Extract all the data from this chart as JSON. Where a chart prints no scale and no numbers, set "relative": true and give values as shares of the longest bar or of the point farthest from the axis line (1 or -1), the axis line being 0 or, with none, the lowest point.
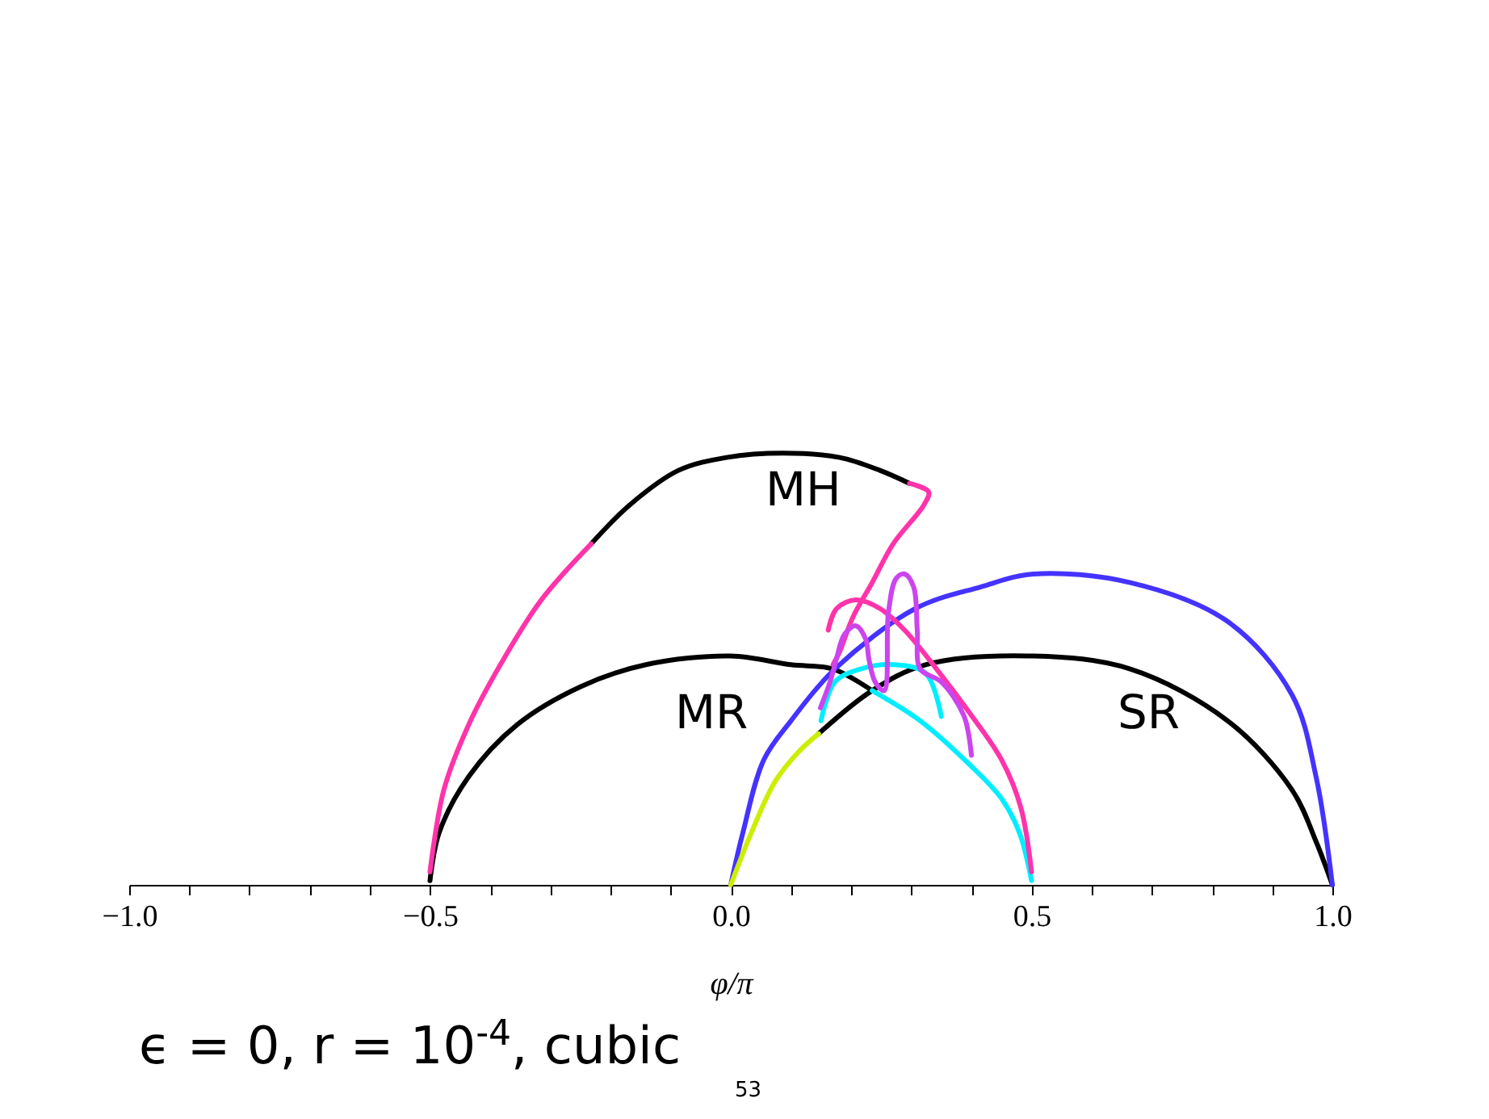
{
  "chart_data": {
    "type": "line",
    "relative": true,
    "xlabel": "φ/π",
    "xlim": [
      -1,
      1
    ],
    "xticks": [
      {
        "value": -1,
        "label": "−1.0"
      },
      {
        "value": -0.9,
        "label": null
      },
      {
        "value": -0.8,
        "label": null
      },
      {
        "value": -0.7,
        "label": null
      },
      {
        "value": -0.6,
        "label": null
      },
      {
        "value": -0.5,
        "label": "−0.5"
      },
      {
        "value": -0.4,
        "label": null
      },
      {
        "value": -0.3,
        "label": null
      },
      {
        "value": -0.2,
        "label": null
      },
      {
        "value": -0.1,
        "label": null
      },
      {
        "value": 0,
        "label": "0.0"
      },
      {
        "value": 0.1,
        "label": null
      },
      {
        "value": 0.2,
        "label": null
      },
      {
        "value": 0.3,
        "label": null
      },
      {
        "value": 0.4,
        "label": null
      },
      {
        "value": 0.5,
        "label": "0.5"
      },
      {
        "value": 0.6,
        "label": null
      },
      {
        "value": 0.7,
        "label": null
      },
      {
        "value": 0.8,
        "label": null
      },
      {
        "value": 0.9,
        "label": null
      },
      {
        "value": 1,
        "label": "1.0"
      }
    ],
    "grid": false,
    "legend": false,
    "marker": "none",
    "line_style": "solid",
    "series": [
      {
        "color": "#000000",
        "x": [
          -0.5,
          -0.485,
          -0.436,
          -0.356,
          -0.248,
          -0.141,
          0.0,
          0.1,
          0.17,
          0.235
        ],
        "values": [
          0.01,
          0.12,
          0.25,
          0.37,
          0.46,
          0.51,
          0.53,
          0.51,
          0.5,
          0.45
        ]
      },
      {
        "color": "#000000",
        "x": [
          0.146,
          0.235,
          0.324,
          0.503,
          0.664,
          0.826,
          0.933,
          0.973,
          1.0
        ],
        "values": [
          0.35,
          0.45,
          0.51,
          0.53,
          0.5,
          0.38,
          0.22,
          0.1,
          0.0
        ]
      },
      {
        "color": "#000000",
        "x": [
          -0.232,
          -0.168,
          -0.087,
          -0.007,
          0.087,
          0.181,
          0.248,
          0.297
        ],
        "values": [
          0.79,
          0.88,
          0.96,
          0.99,
          1.0,
          0.99,
          0.96,
          0.93
        ]
      },
      {
        "color": "#4433ff",
        "x": [
          0,
          0.02,
          0.055,
          0.1,
          0.173,
          0.307,
          0.415,
          0.503,
          0.664,
          0.826,
          0.933,
          0.973,
          1.0
        ],
        "values": [
          0,
          0.12,
          0.29,
          0.38,
          0.5,
          0.64,
          0.69,
          0.72,
          0.7,
          0.61,
          0.44,
          0.25,
          0
        ]
      },
      {
        "color": "#ccee00",
        "x": [
          0,
          0.034,
          0.074,
          0.114,
          0.146
        ],
        "values": [
          0,
          0.12,
          0.24,
          0.31,
          0.35
        ]
      },
      {
        "color": "#00eeff",
        "x": [
          0.15,
          0.173,
          0.216,
          0.27,
          0.324,
          0.35
        ],
        "values": [
          0.38,
          0.47,
          0.5,
          0.51,
          0.49,
          0.39
        ]
      },
      {
        "color": "#00eeff",
        "x": [
          0.235,
          0.315,
          0.396,
          0.45,
          0.48,
          0.5
        ],
        "values": [
          0.45,
          0.38,
          0.28,
          0.2,
          0.12,
          0.01
        ]
      },
      {
        "color": "#ff33aa",
        "x": [
          -0.5,
          -0.477,
          -0.436,
          -0.383,
          -0.315,
          -0.232
        ],
        "values": [
          0.03,
          0.22,
          0.37,
          0.51,
          0.66,
          0.79
        ]
      },
      {
        "color": "#ff33aa",
        "x": [
          0.297,
          0.329,
          0.321,
          0.27,
          0.235,
          0.203,
          0.181,
          0.17
        ],
        "values": [
          0.93,
          0.91,
          0.88,
          0.79,
          0.7,
          0.62,
          0.54,
          0.51
        ]
      },
      {
        "color": "#ff33aa",
        "x": [
          0.162,
          0.176,
          0.208,
          0.248,
          0.289,
          0.342,
          0.396,
          0.45,
          0.482,
          0.5
        ],
        "values": [
          0.59,
          0.64,
          0.66,
          0.64,
          0.59,
          0.5,
          0.4,
          0.29,
          0.18,
          0.03
        ]
      },
      {
        "color": "#cc44ee",
        "x": [
          0.149,
          0.165,
          0.175,
          0.189,
          0.208,
          0.224,
          0.23,
          0.24,
          0.255,
          0.262,
          0.275,
          0.289,
          0.304,
          0.31,
          0.315,
          0.35,
          0.388,
          0.4
        ],
        "values": [
          0.41,
          0.47,
          0.52,
          0.58,
          0.6,
          0.57,
          0.52,
          0.47,
          0.45,
          0.63,
          0.71,
          0.72,
          0.69,
          0.59,
          0.5,
          0.47,
          0.39,
          0.3
        ]
      }
    ],
    "annotations": [
      "MH",
      "MR",
      "SR",
      "ϵ = 0,  r = 10$^{-4}$, cubic",
      "53"
    ]
  }
}
